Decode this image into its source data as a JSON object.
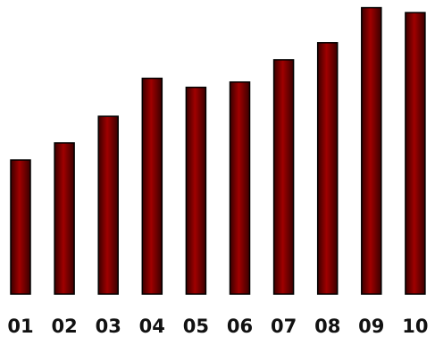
{
  "chart_data": {
    "type": "bar",
    "categories": [
      "01",
      "02",
      "03",
      "04",
      "05",
      "06",
      "07",
      "08",
      "09",
      "10"
    ],
    "values": [
      46.3,
      52.2,
      61.4,
      74.5,
      71.4,
      73.2,
      80.9,
      86.8,
      98.9,
      97.2
    ],
    "ylim": [
      0,
      100
    ],
    "grid": false,
    "legend": "none",
    "bar_color": "#7a0000",
    "bar_highlight": "#a00000",
    "bar_edge_color": "#000000"
  }
}
